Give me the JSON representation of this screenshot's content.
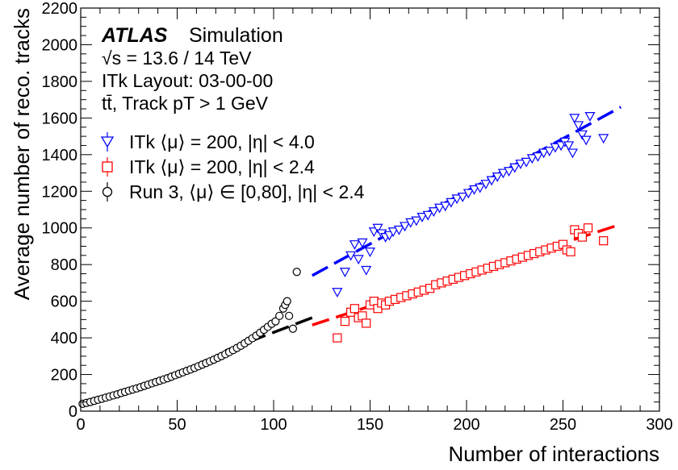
{
  "chart_data": {
    "type": "scatter",
    "xlabel": "Number of interactions",
    "ylabel": "Average number of reco. tracks",
    "xlim": [
      0,
      300
    ],
    "ylim": [
      0,
      2200
    ],
    "x_ticks": [
      0,
      50,
      100,
      150,
      200,
      250,
      300
    ],
    "y_ticks": [
      0,
      200,
      400,
      600,
      800,
      1000,
      1200,
      1400,
      1600,
      1800,
      2000,
      2200
    ],
    "grid": false,
    "legend_position": "upper-left",
    "annotations": {
      "atlas": "ATLAS",
      "simulation": "Simulation",
      "energy": "√s = 13.6 / 14 TeV",
      "layout": "ITk Layout: 03-00-00",
      "process": "tt̄, Track pT > 1 GeV"
    },
    "series": [
      {
        "name": "ITk ⟨μ⟩ = 200, |η| < 4.0",
        "marker": "triangle-down-open",
        "color": "#0000ff",
        "points": [
          [
            133,
            650
          ],
          [
            137,
            760
          ],
          [
            140,
            850
          ],
          [
            142,
            910
          ],
          [
            144,
            830
          ],
          [
            146,
            920
          ],
          [
            148,
            770
          ],
          [
            150,
            870
          ],
          [
            152,
            980
          ],
          [
            154,
            1000
          ],
          [
            156,
            970
          ],
          [
            158,
            950
          ],
          [
            160,
            960
          ],
          [
            162,
            980
          ],
          [
            165,
            990
          ],
          [
            168,
            1010
          ],
          [
            171,
            1030
          ],
          [
            174,
            1040
          ],
          [
            177,
            1060
          ],
          [
            180,
            1070
          ],
          [
            183,
            1090
          ],
          [
            186,
            1110
          ],
          [
            189,
            1120
          ],
          [
            192,
            1140
          ],
          [
            195,
            1160
          ],
          [
            198,
            1170
          ],
          [
            201,
            1190
          ],
          [
            204,
            1210
          ],
          [
            207,
            1220
          ],
          [
            210,
            1240
          ],
          [
            213,
            1260
          ],
          [
            216,
            1280
          ],
          [
            219,
            1300
          ],
          [
            222,
            1310
          ],
          [
            225,
            1330
          ],
          [
            228,
            1350
          ],
          [
            231,
            1360
          ],
          [
            234,
            1380
          ],
          [
            237,
            1390
          ],
          [
            240,
            1410
          ],
          [
            243,
            1420
          ],
          [
            246,
            1440
          ],
          [
            249,
            1450
          ],
          [
            251,
            1470
          ],
          [
            253,
            1450
          ],
          [
            255,
            1410
          ],
          [
            256,
            1600
          ],
          [
            258,
            1560
          ],
          [
            260,
            1510
          ],
          [
            262,
            1480
          ],
          [
            264,
            1610
          ],
          [
            271,
            1490
          ]
        ],
        "fit_line": {
          "color": "#0000ff",
          "x": [
            120,
            280
          ],
          "y": [
            740,
            1660
          ]
        }
      },
      {
        "name": "ITk ⟨μ⟩ = 200, |η| < 2.4",
        "marker": "square-open",
        "color": "#ff0000",
        "points": [
          [
            133,
            400
          ],
          [
            137,
            490
          ],
          [
            140,
            540
          ],
          [
            142,
            560
          ],
          [
            144,
            510
          ],
          [
            146,
            520
          ],
          [
            148,
            480
          ],
          [
            150,
            580
          ],
          [
            152,
            600
          ],
          [
            154,
            560
          ],
          [
            156,
            590
          ],
          [
            158,
            580
          ],
          [
            160,
            600
          ],
          [
            163,
            610
          ],
          [
            166,
            620
          ],
          [
            169,
            630
          ],
          [
            172,
            640
          ],
          [
            175,
            650
          ],
          [
            178,
            660
          ],
          [
            181,
            670
          ],
          [
            184,
            690
          ],
          [
            187,
            700
          ],
          [
            190,
            710
          ],
          [
            193,
            720
          ],
          [
            196,
            730
          ],
          [
            199,
            740
          ],
          [
            202,
            750
          ],
          [
            205,
            760
          ],
          [
            208,
            770
          ],
          [
            211,
            780
          ],
          [
            214,
            790
          ],
          [
            217,
            800
          ],
          [
            220,
            810
          ],
          [
            223,
            820
          ],
          [
            226,
            830
          ],
          [
            229,
            840
          ],
          [
            232,
            850
          ],
          [
            235,
            860
          ],
          [
            238,
            870
          ],
          [
            241,
            880
          ],
          [
            244,
            890
          ],
          [
            247,
            900
          ],
          [
            250,
            910
          ],
          [
            252,
            880
          ],
          [
            254,
            870
          ],
          [
            256,
            990
          ],
          [
            258,
            970
          ],
          [
            260,
            950
          ],
          [
            263,
            1000
          ],
          [
            271,
            930
          ]
        ],
        "fit_line": {
          "color": "#ff0000",
          "x": [
            120,
            280
          ],
          "y": [
            470,
            1020
          ]
        }
      },
      {
        "name": "Run 3, ⟨μ⟩ ∈ [0,80], |η| < 2.4",
        "marker": "circle-open",
        "color": "#000000",
        "points": [
          [
            1,
            40
          ],
          [
            3,
            45
          ],
          [
            5,
            50
          ],
          [
            7,
            56
          ],
          [
            9,
            62
          ],
          [
            11,
            68
          ],
          [
            13,
            74
          ],
          [
            15,
            80
          ],
          [
            17,
            86
          ],
          [
            19,
            92
          ],
          [
            21,
            99
          ],
          [
            23,
            105
          ],
          [
            25,
            112
          ],
          [
            27,
            118
          ],
          [
            29,
            124
          ],
          [
            31,
            131
          ],
          [
            33,
            138
          ],
          [
            35,
            145
          ],
          [
            37,
            152
          ],
          [
            39,
            159
          ],
          [
            41,
            166
          ],
          [
            43,
            173
          ],
          [
            45,
            180
          ],
          [
            47,
            188
          ],
          [
            49,
            196
          ],
          [
            51,
            204
          ],
          [
            53,
            212
          ],
          [
            55,
            220
          ],
          [
            57,
            228
          ],
          [
            59,
            236
          ],
          [
            61,
            245
          ],
          [
            63,
            254
          ],
          [
            65,
            263
          ],
          [
            67,
            272
          ],
          [
            69,
            281
          ],
          [
            71,
            291
          ],
          [
            73,
            301
          ],
          [
            75,
            311
          ],
          [
            77,
            322
          ],
          [
            79,
            333
          ],
          [
            81,
            345
          ],
          [
            83,
            357
          ],
          [
            85,
            370
          ],
          [
            87,
            384
          ],
          [
            89,
            398
          ],
          [
            91,
            412
          ],
          [
            93,
            428
          ],
          [
            95,
            444
          ],
          [
            97,
            460
          ],
          [
            99,
            477
          ],
          [
            101,
            490
          ],
          [
            103,
            520
          ],
          [
            105,
            560
          ],
          [
            106,
            580
          ],
          [
            107,
            600
          ],
          [
            108,
            520
          ],
          [
            110,
            450
          ],
          [
            112,
            760
          ]
        ],
        "fit_line": {
          "color": "#000000",
          "x": [
            75,
            120
          ],
          "y": [
            330,
            510
          ]
        }
      }
    ]
  }
}
